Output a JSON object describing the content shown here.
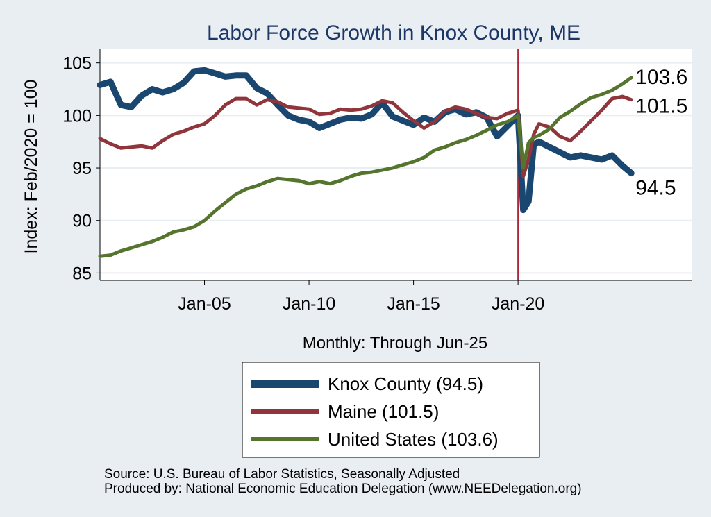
{
  "chart_data": {
    "type": "line",
    "title": "Labor Force Growth in Knox  County, ME",
    "ylabel": "Index: Feb/2020 = 100",
    "xlabel": "Monthly: Through Jun-25",
    "ylim": [
      84.3,
      106.3
    ],
    "xlim": [
      "2000-01",
      "2028-05"
    ],
    "y_ticks": [
      85,
      90,
      95,
      100,
      105
    ],
    "x_ticks": [
      {
        "label": "Jan-05",
        "x": "2005-01"
      },
      {
        "label": "Jan-10",
        "x": "2010-01"
      },
      {
        "label": "Jan-15",
        "x": "2015-01"
      },
      {
        "label": "Jan-20",
        "x": "2020-01"
      }
    ],
    "grid": true,
    "vertical_marker": "2020-01",
    "legend_position": "bottom",
    "series": [
      {
        "name": "Knox  County (94.5)",
        "color": "#1a476f",
        "end_label": "94.5",
        "points": [
          [
            "2000-01",
            102.9
          ],
          [
            "2000-07",
            103.2
          ],
          [
            "2001-01",
            101.0
          ],
          [
            "2001-07",
            100.8
          ],
          [
            "2002-01",
            101.9
          ],
          [
            "2002-07",
            102.5
          ],
          [
            "2003-01",
            102.2
          ],
          [
            "2003-07",
            102.5
          ],
          [
            "2004-01",
            103.1
          ],
          [
            "2004-07",
            104.2
          ],
          [
            "2005-01",
            104.3
          ],
          [
            "2005-07",
            104.0
          ],
          [
            "2006-01",
            103.7
          ],
          [
            "2006-07",
            103.8
          ],
          [
            "2007-01",
            103.8
          ],
          [
            "2007-07",
            102.6
          ],
          [
            "2008-01",
            102.1
          ],
          [
            "2008-07",
            101.0
          ],
          [
            "2009-01",
            100.0
          ],
          [
            "2009-07",
            99.6
          ],
          [
            "2010-01",
            99.4
          ],
          [
            "2010-07",
            98.8
          ],
          [
            "2011-01",
            99.2
          ],
          [
            "2011-07",
            99.6
          ],
          [
            "2012-01",
            99.8
          ],
          [
            "2012-07",
            99.7
          ],
          [
            "2013-01",
            100.1
          ],
          [
            "2013-07",
            101.2
          ],
          [
            "2014-01",
            99.9
          ],
          [
            "2014-07",
            99.5
          ],
          [
            "2015-01",
            99.1
          ],
          [
            "2015-07",
            99.8
          ],
          [
            "2016-01",
            99.4
          ],
          [
            "2016-07",
            100.3
          ],
          [
            "2017-01",
            100.6
          ],
          [
            "2017-07",
            100.1
          ],
          [
            "2018-01",
            100.3
          ],
          [
            "2018-07",
            99.8
          ],
          [
            "2019-01",
            98.0
          ],
          [
            "2019-07",
            99.0
          ],
          [
            "2020-01",
            100.0
          ],
          [
            "2020-04",
            91.0
          ],
          [
            "2020-07",
            91.8
          ],
          [
            "2020-10",
            97.2
          ],
          [
            "2021-01",
            97.5
          ],
          [
            "2021-07",
            97.0
          ],
          [
            "2022-01",
            96.5
          ],
          [
            "2022-07",
            96.0
          ],
          [
            "2023-01",
            96.2
          ],
          [
            "2023-07",
            96.0
          ],
          [
            "2024-01",
            95.8
          ],
          [
            "2024-07",
            96.2
          ],
          [
            "2025-01",
            95.2
          ],
          [
            "2025-06",
            94.5
          ]
        ]
      },
      {
        "name": "Maine (101.5)",
        "color": "#90353b",
        "end_label": "101.5",
        "points": [
          [
            "2000-01",
            97.8
          ],
          [
            "2000-07",
            97.3
          ],
          [
            "2001-01",
            96.9
          ],
          [
            "2001-07",
            97.0
          ],
          [
            "2002-01",
            97.1
          ],
          [
            "2002-07",
            96.9
          ],
          [
            "2003-01",
            97.6
          ],
          [
            "2003-07",
            98.2
          ],
          [
            "2004-01",
            98.5
          ],
          [
            "2004-07",
            98.9
          ],
          [
            "2005-01",
            99.2
          ],
          [
            "2005-07",
            100.0
          ],
          [
            "2006-01",
            101.0
          ],
          [
            "2006-07",
            101.6
          ],
          [
            "2007-01",
            101.6
          ],
          [
            "2007-07",
            101.0
          ],
          [
            "2008-01",
            101.5
          ],
          [
            "2008-07",
            101.3
          ],
          [
            "2009-01",
            100.8
          ],
          [
            "2009-07",
            100.7
          ],
          [
            "2010-01",
            100.6
          ],
          [
            "2010-07",
            100.1
          ],
          [
            "2011-01",
            100.2
          ],
          [
            "2011-07",
            100.6
          ],
          [
            "2012-01",
            100.5
          ],
          [
            "2012-07",
            100.6
          ],
          [
            "2013-01",
            100.9
          ],
          [
            "2013-07",
            101.4
          ],
          [
            "2014-01",
            101.2
          ],
          [
            "2014-07",
            100.3
          ],
          [
            "2015-01",
            99.5
          ],
          [
            "2015-07",
            98.8
          ],
          [
            "2016-01",
            99.4
          ],
          [
            "2016-07",
            100.4
          ],
          [
            "2017-01",
            100.8
          ],
          [
            "2017-07",
            100.6
          ],
          [
            "2018-01",
            100.2
          ],
          [
            "2018-07",
            99.8
          ],
          [
            "2019-01",
            99.7
          ],
          [
            "2019-07",
            100.2
          ],
          [
            "2020-01",
            100.5
          ],
          [
            "2020-04",
            94.2
          ],
          [
            "2020-07",
            95.8
          ],
          [
            "2020-10",
            98.2
          ],
          [
            "2021-01",
            99.2
          ],
          [
            "2021-07",
            98.9
          ],
          [
            "2022-01",
            98.0
          ],
          [
            "2022-07",
            97.6
          ],
          [
            "2023-01",
            98.5
          ],
          [
            "2023-07",
            99.5
          ],
          [
            "2024-01",
            100.5
          ],
          [
            "2024-07",
            101.6
          ],
          [
            "2025-01",
            101.8
          ],
          [
            "2025-06",
            101.5
          ]
        ]
      },
      {
        "name": "United States (103.6)",
        "color": "#55752f",
        "end_label": "103.6",
        "points": [
          [
            "2000-01",
            86.6
          ],
          [
            "2000-07",
            86.7
          ],
          [
            "2001-01",
            87.1
          ],
          [
            "2001-07",
            87.4
          ],
          [
            "2002-01",
            87.7
          ],
          [
            "2002-07",
            88.0
          ],
          [
            "2003-01",
            88.4
          ],
          [
            "2003-07",
            88.9
          ],
          [
            "2004-01",
            89.1
          ],
          [
            "2004-07",
            89.4
          ],
          [
            "2005-01",
            90.0
          ],
          [
            "2005-07",
            90.9
          ],
          [
            "2006-01",
            91.7
          ],
          [
            "2006-07",
            92.5
          ],
          [
            "2007-01",
            93.0
          ],
          [
            "2007-07",
            93.3
          ],
          [
            "2008-01",
            93.7
          ],
          [
            "2008-07",
            94.0
          ],
          [
            "2009-01",
            93.9
          ],
          [
            "2009-07",
            93.8
          ],
          [
            "2010-01",
            93.5
          ],
          [
            "2010-07",
            93.7
          ],
          [
            "2011-01",
            93.5
          ],
          [
            "2011-07",
            93.8
          ],
          [
            "2012-01",
            94.2
          ],
          [
            "2012-07",
            94.5
          ],
          [
            "2013-01",
            94.6
          ],
          [
            "2013-07",
            94.8
          ],
          [
            "2014-01",
            95.0
          ],
          [
            "2014-07",
            95.3
          ],
          [
            "2015-01",
            95.6
          ],
          [
            "2015-07",
            96.0
          ],
          [
            "2016-01",
            96.7
          ],
          [
            "2016-07",
            97.0
          ],
          [
            "2017-01",
            97.4
          ],
          [
            "2017-07",
            97.7
          ],
          [
            "2018-01",
            98.1
          ],
          [
            "2018-07",
            98.6
          ],
          [
            "2019-01",
            99.1
          ],
          [
            "2019-07",
            99.4
          ],
          [
            "2020-01",
            100.0
          ],
          [
            "2020-04",
            95.0
          ],
          [
            "2020-07",
            97.4
          ],
          [
            "2020-10",
            97.9
          ],
          [
            "2021-01",
            98.1
          ],
          [
            "2021-07",
            98.7
          ],
          [
            "2022-01",
            99.8
          ],
          [
            "2022-07",
            100.4
          ],
          [
            "2023-01",
            101.1
          ],
          [
            "2023-07",
            101.7
          ],
          [
            "2024-01",
            102.0
          ],
          [
            "2024-07",
            102.4
          ],
          [
            "2025-01",
            103.0
          ],
          [
            "2025-06",
            103.6
          ]
        ]
      }
    ]
  },
  "footnotes": {
    "source": "Source: U.S. Bureau of Labor Statistics, Seasonally Adjusted",
    "produced_by": "Produced by: National Economic Education Delegation (www.NEEDelegation.org)"
  }
}
